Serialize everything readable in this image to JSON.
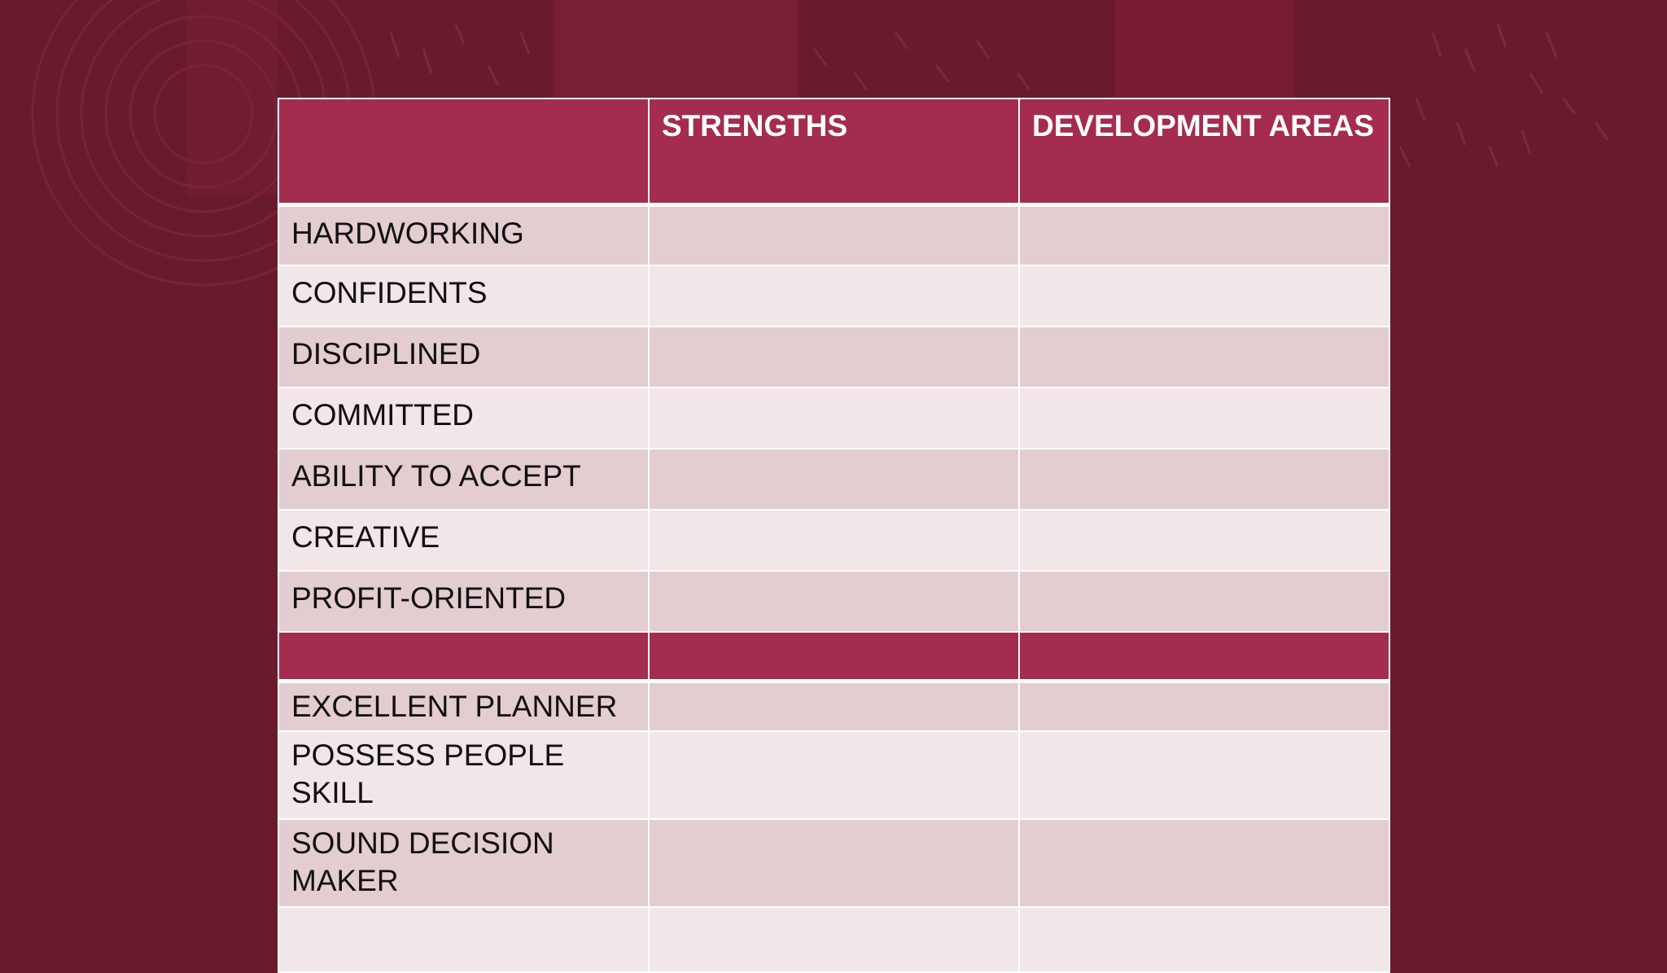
{
  "colors": {
    "background": "#6a1b2b",
    "header": "#a42c4f",
    "row_odd": "#e3cdd1",
    "row_even": "#f1e6e8"
  },
  "table": {
    "headers": [
      "",
      "STRENGTHS",
      "DEVELOPMENT AREAS"
    ],
    "group1": [
      {
        "label": "HARDWORKING"
      },
      {
        "label": "CONFIDENTS"
      },
      {
        "label": "DISCIPLINED"
      },
      {
        "label": "COMMITTED"
      },
      {
        "label": "ABILITY TO ACCEPT"
      },
      {
        "label": "CREATIVE"
      },
      {
        "label": "PROFIT-ORIENTED"
      }
    ],
    "group2": [
      {
        "label": "EXCELLENT PLANNER"
      },
      {
        "label": "POSSESS PEOPLE SKILL"
      },
      {
        "label": "SOUND DECISION MAKER"
      },
      {
        "label": ""
      }
    ]
  }
}
